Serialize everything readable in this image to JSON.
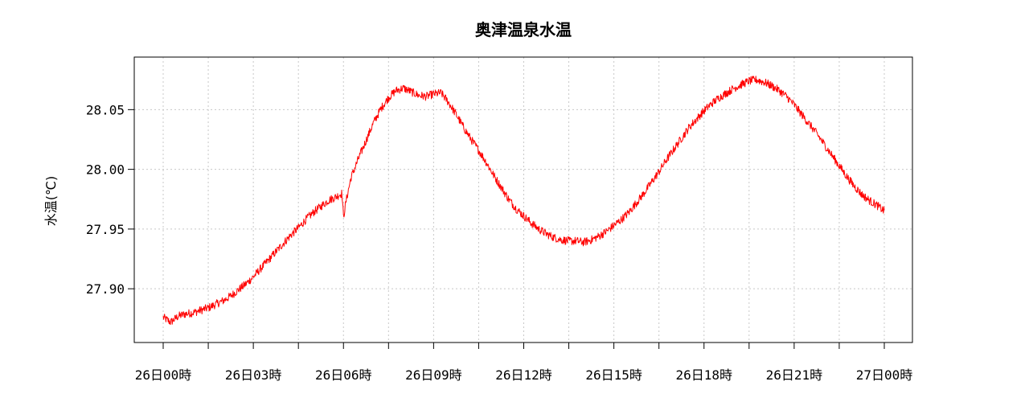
{
  "chart_data": {
    "type": "line",
    "title": "奥津温泉水温",
    "xlabel": "",
    "ylabel": "水温(℃)",
    "x_unit_hours_range": [
      0,
      24
    ],
    "x_ticks": [
      {
        "hour": 0,
        "label": "26日00時"
      },
      {
        "hour": 3,
        "label": "26日03時"
      },
      {
        "hour": 6,
        "label": "26日06時"
      },
      {
        "hour": 9,
        "label": "26日09時"
      },
      {
        "hour": 12,
        "label": "26日12時"
      },
      {
        "hour": 15,
        "label": "26日15時"
      },
      {
        "hour": 18,
        "label": "26日18時"
      },
      {
        "hour": 21,
        "label": "26日21時"
      },
      {
        "hour": 24,
        "label": "27日00時"
      }
    ],
    "x_minor_tick_hours": [
      1.5,
      4.5,
      7.5,
      10.5,
      13.5,
      16.5,
      19.5,
      22.5
    ],
    "y_ticks": [
      27.9,
      27.95,
      28.0,
      28.05
    ],
    "y_tick_labels": [
      "27.90",
      "27.95",
      "28.00",
      "28.05"
    ],
    "ylim": [
      27.855,
      28.094
    ],
    "grid": true,
    "legend": "none",
    "series": [
      {
        "color": "#ff0000",
        "points": [
          [
            0.0,
            27.876
          ],
          [
            0.25,
            27.872
          ],
          [
            0.5,
            27.877
          ],
          [
            0.75,
            27.879
          ],
          [
            1.0,
            27.88
          ],
          [
            1.25,
            27.882
          ],
          [
            1.5,
            27.884
          ],
          [
            1.75,
            27.887
          ],
          [
            2.0,
            27.89
          ],
          [
            2.25,
            27.894
          ],
          [
            2.5,
            27.899
          ],
          [
            2.75,
            27.904
          ],
          [
            3.0,
            27.91
          ],
          [
            3.25,
            27.917
          ],
          [
            3.5,
            27.924
          ],
          [
            3.75,
            27.931
          ],
          [
            4.0,
            27.938
          ],
          [
            4.25,
            27.945
          ],
          [
            4.5,
            27.951
          ],
          [
            4.75,
            27.958
          ],
          [
            5.0,
            27.964
          ],
          [
            5.25,
            27.969
          ],
          [
            5.5,
            27.974
          ],
          [
            5.75,
            27.977
          ],
          [
            5.95,
            27.98
          ],
          [
            6.0,
            27.96
          ],
          [
            6.1,
            27.975
          ],
          [
            6.25,
            27.993
          ],
          [
            6.5,
            28.009
          ],
          [
            6.75,
            28.024
          ],
          [
            7.0,
            28.039
          ],
          [
            7.25,
            28.051
          ],
          [
            7.5,
            28.06
          ],
          [
            7.75,
            28.066
          ],
          [
            8.0,
            28.068
          ],
          [
            8.25,
            28.065
          ],
          [
            8.5,
            28.062
          ],
          [
            8.75,
            28.061
          ],
          [
            9.0,
            28.063
          ],
          [
            9.25,
            28.064
          ],
          [
            9.5,
            28.056
          ],
          [
            9.75,
            28.046
          ],
          [
            10.0,
            28.035
          ],
          [
            10.25,
            28.025
          ],
          [
            10.5,
            28.016
          ],
          [
            10.75,
            28.006
          ],
          [
            11.0,
            27.995
          ],
          [
            11.25,
            27.985
          ],
          [
            11.5,
            27.975
          ],
          [
            11.75,
            27.967
          ],
          [
            12.0,
            27.961
          ],
          [
            12.25,
            27.955
          ],
          [
            12.5,
            27.95
          ],
          [
            12.75,
            27.946
          ],
          [
            13.0,
            27.943
          ],
          [
            13.25,
            27.941
          ],
          [
            13.5,
            27.94
          ],
          [
            13.75,
            27.94
          ],
          [
            14.0,
            27.939
          ],
          [
            14.25,
            27.941
          ],
          [
            14.5,
            27.944
          ],
          [
            14.75,
            27.948
          ],
          [
            15.0,
            27.953
          ],
          [
            15.25,
            27.958
          ],
          [
            15.5,
            27.964
          ],
          [
            15.75,
            27.972
          ],
          [
            16.0,
            27.98
          ],
          [
            16.25,
            27.989
          ],
          [
            16.5,
            27.998
          ],
          [
            16.75,
            28.008
          ],
          [
            17.0,
            28.017
          ],
          [
            17.25,
            28.026
          ],
          [
            17.5,
            28.035
          ],
          [
            17.75,
            28.042
          ],
          [
            18.0,
            28.049
          ],
          [
            18.25,
            28.055
          ],
          [
            18.5,
            28.06
          ],
          [
            18.75,
            28.064
          ],
          [
            19.0,
            28.068
          ],
          [
            19.25,
            28.071
          ],
          [
            19.5,
            28.074
          ],
          [
            19.75,
            28.075
          ],
          [
            20.0,
            28.073
          ],
          [
            20.25,
            28.07
          ],
          [
            20.5,
            28.066
          ],
          [
            20.75,
            28.061
          ],
          [
            21.0,
            28.054
          ],
          [
            21.25,
            28.046
          ],
          [
            21.5,
            28.038
          ],
          [
            21.75,
            28.03
          ],
          [
            22.0,
            28.021
          ],
          [
            22.25,
            28.012
          ],
          [
            22.5,
            28.003
          ],
          [
            22.75,
            27.994
          ],
          [
            23.0,
            27.986
          ],
          [
            23.25,
            27.979
          ],
          [
            23.5,
            27.974
          ],
          [
            23.75,
            27.97
          ],
          [
            24.0,
            27.965
          ]
        ]
      }
    ]
  }
}
